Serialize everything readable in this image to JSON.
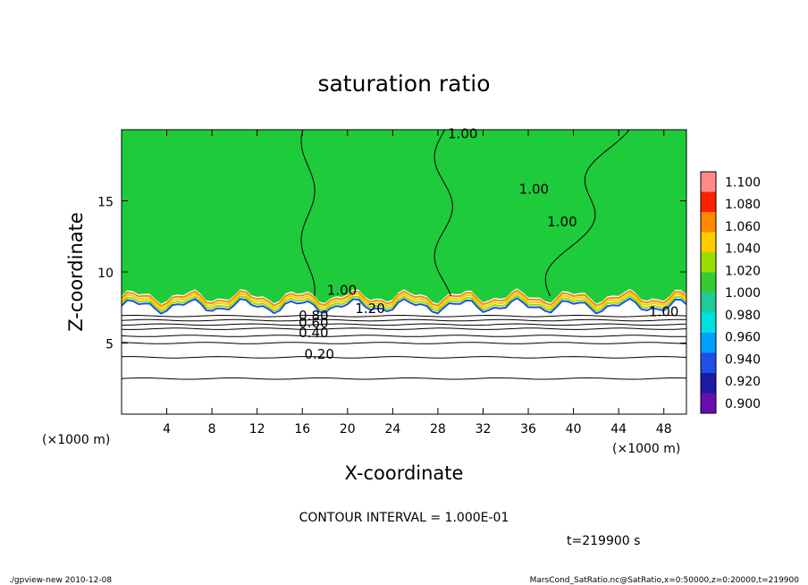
{
  "chart_data": {
    "type": "heatmap",
    "title": "saturation ratio",
    "xlabel": "X-coordinate",
    "ylabel": "Z-coordinate",
    "x_units": "(×1000 m)",
    "z_units": "(×1000 m)",
    "xlim": [
      0,
      50
    ],
    "ylim": [
      0,
      20
    ],
    "xticks": [
      "4",
      "8",
      "12",
      "16",
      "20",
      "24",
      "28",
      "32",
      "36",
      "40",
      "44",
      "48"
    ],
    "yticks": [
      "5",
      "10",
      "15"
    ],
    "colorbar": {
      "levels": [
        "0.900",
        "0.920",
        "0.940",
        "0.960",
        "0.980",
        "1.000",
        "1.020",
        "1.040",
        "1.060",
        "1.080",
        "1.100"
      ],
      "colors": [
        "#6a0dad",
        "#1a1aa6",
        "#1e4fe8",
        "#00a0ff",
        "#00e0e0",
        "#1ecb9a",
        "#33cc33",
        "#99dd00",
        "#ffcc00",
        "#ff8800",
        "#ff2200",
        "#ff8888"
      ]
    },
    "contour_labels": [
      "1.00",
      "1.00",
      "1.00",
      "1.00",
      "1.20",
      "0.80",
      "0.60",
      "0.40",
      "0.20",
      "1.00"
    ],
    "saturated_layer_bottom_km": 8.3,
    "contour_levels_below": [
      0.2,
      0.3,
      0.4,
      0.5,
      0.6,
      0.7,
      0.8,
      0.9
    ],
    "contour_heights_km": [
      2.5,
      4.0,
      5.0,
      5.5,
      6.0,
      6.3,
      6.6,
      6.9
    ],
    "contour_interval": "CONTOUR INTERVAL = 1.000E-01",
    "time": "t=219900 s"
  },
  "footer": {
    "left": "./gpview-new  2010-12-08",
    "right": "MarsCond_SatRatio.nc@SatRatio,x=0:50000,z=0:20000,t=219900"
  }
}
